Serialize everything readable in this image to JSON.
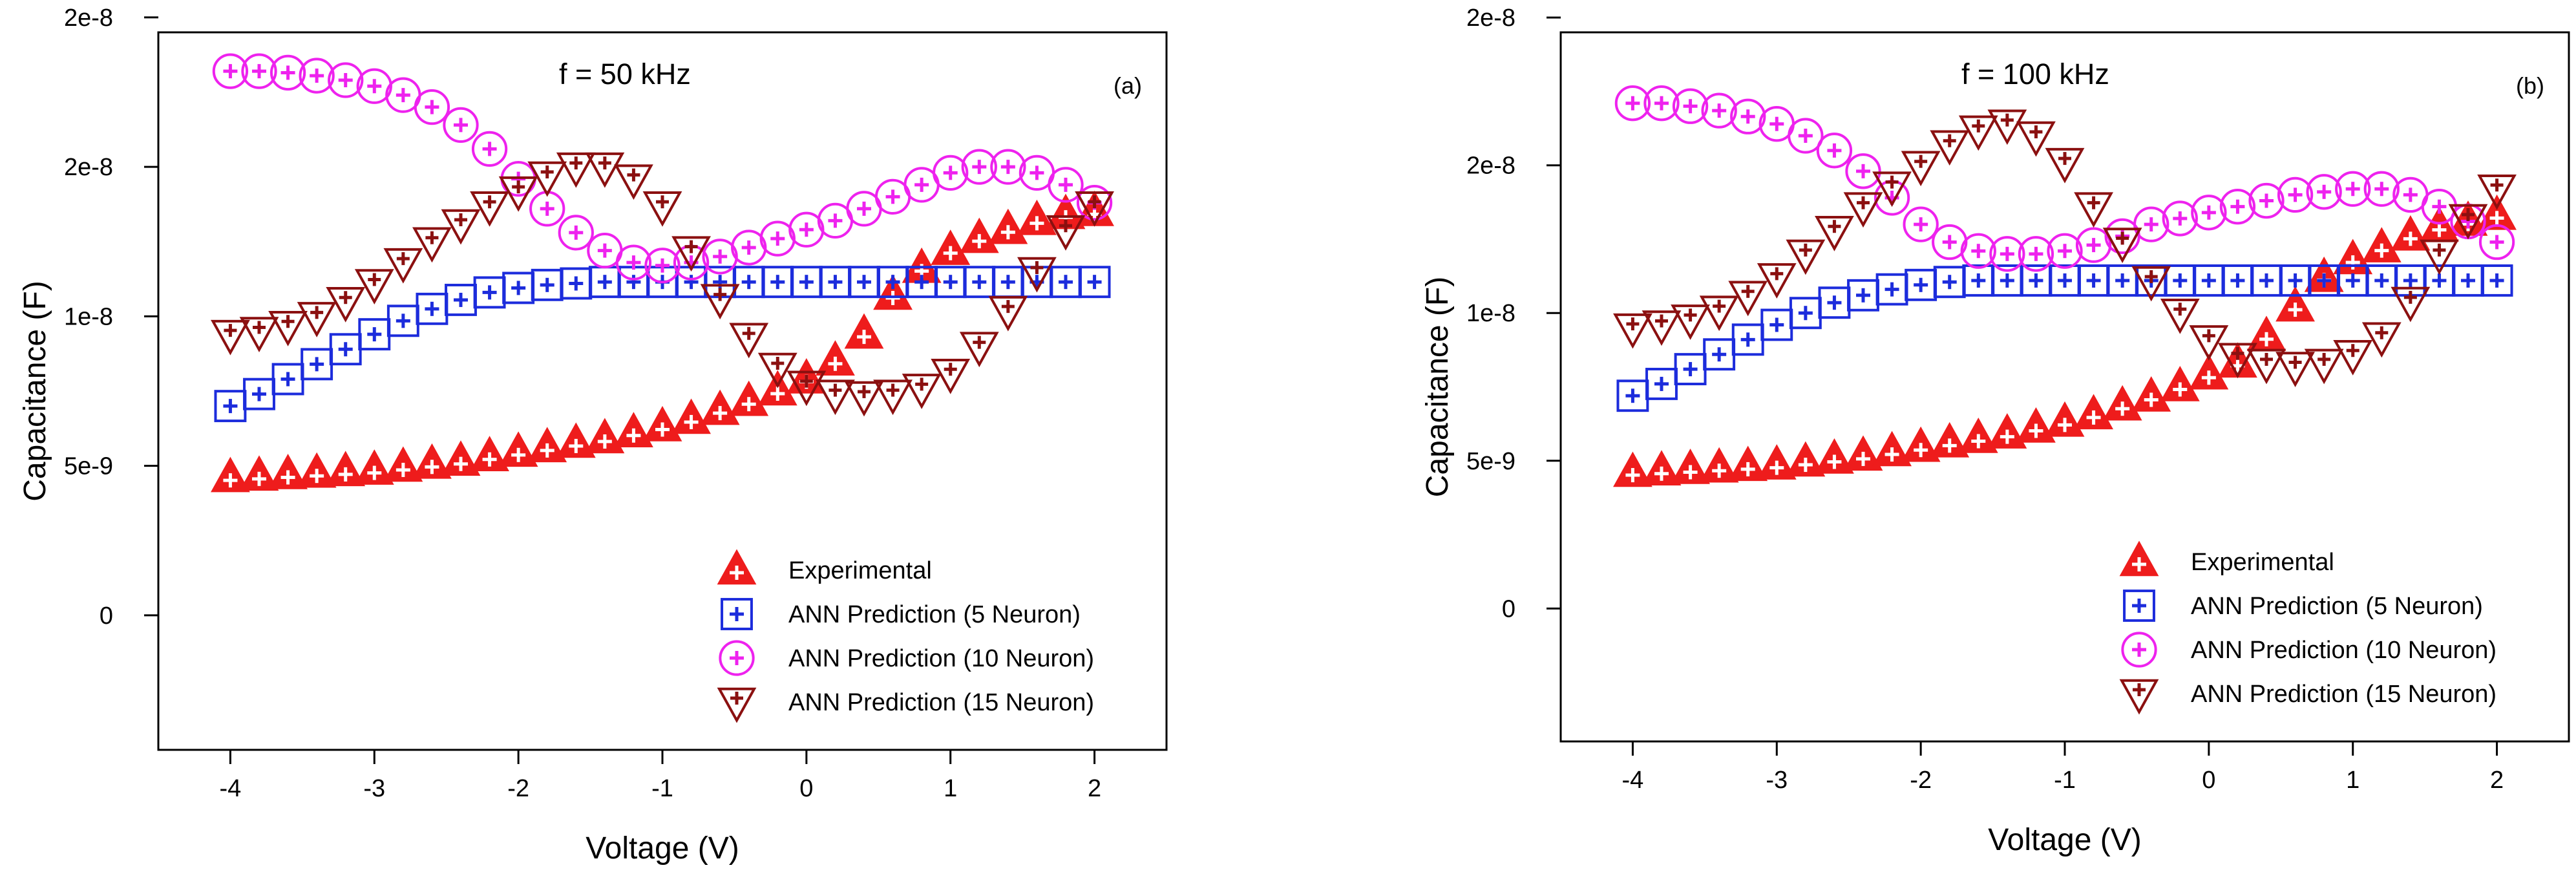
{
  "chart_data": [
    {
      "type": "scatter",
      "panel_label": "(a)",
      "title": "f = 50 kHz",
      "xlabel": "Voltage (V)",
      "ylabel": "Capacitance (F)",
      "xlim": [
        -4.5,
        2.5
      ],
      "ylim": [
        -4.5e-09,
        1.95e-08
      ],
      "xticks": [
        -4,
        -3,
        -2,
        -1,
        0,
        1,
        2
      ],
      "xtick_labels": [
        "-4",
        "-3",
        "-2",
        "-1",
        "0",
        "1",
        "2"
      ],
      "yticks": [
        0,
        5e-09,
        1e-08,
        1.5e-08,
        2e-08
      ],
      "ytick_labels": [
        "0",
        "5e-9",
        "1e-8",
        "2e-8",
        "2e-8"
      ],
      "grid": false,
      "legend_position": "bottom-right",
      "x": [
        -4.0,
        -3.8,
        -3.6,
        -3.4,
        -3.2,
        -3.0,
        -2.8,
        -2.6,
        -2.4,
        -2.2,
        -2.0,
        -1.8,
        -1.6,
        -1.4,
        -1.2,
        -1.0,
        -0.8,
        -0.6,
        -0.4,
        -0.2,
        0.0,
        0.2,
        0.4,
        0.6,
        0.8,
        1.0,
        1.2,
        1.4,
        1.6,
        1.8,
        2.0
      ],
      "series": [
        {
          "name": "Experimental",
          "marker": "triangle-up",
          "color": "#ee1c1c",
          "values": [
            4.6e-09,
            4.65e-09,
            4.7e-09,
            4.75e-09,
            4.8e-09,
            4.85e-09,
            4.95e-09,
            5.05e-09,
            5.15e-09,
            5.3e-09,
            5.45e-09,
            5.6e-09,
            5.75e-09,
            5.9e-09,
            6.1e-09,
            6.3e-09,
            6.55e-09,
            6.85e-09,
            7.15e-09,
            7.5e-09,
            7.9e-09,
            8.5e-09,
            9.4e-09,
            1.07e-08,
            1.16e-08,
            1.22e-08,
            1.26e-08,
            1.29e-08,
            1.32e-08,
            1.34e-08,
            1.35e-08
          ]
        },
        {
          "name": "ANN Prediction (5 Neuron)",
          "marker": "square",
          "color": "#1c2cdc",
          "values": [
            7e-09,
            7.4e-09,
            7.9e-09,
            8.4e-09,
            8.9e-09,
            9.4e-09,
            9.85e-09,
            1.025e-08,
            1.055e-08,
            1.08e-08,
            1.095e-08,
            1.105e-08,
            1.11e-08,
            1.115e-08,
            1.115e-08,
            1.115e-08,
            1.115e-08,
            1.115e-08,
            1.115e-08,
            1.115e-08,
            1.115e-08,
            1.115e-08,
            1.115e-08,
            1.115e-08,
            1.115e-08,
            1.115e-08,
            1.115e-08,
            1.115e-08,
            1.115e-08,
            1.115e-08,
            1.115e-08
          ]
        },
        {
          "name": "ANN Prediction (10 Neuron)",
          "marker": "circle",
          "color": "#ee22ee",
          "values": [
            1.82e-08,
            1.82e-08,
            1.815e-08,
            1.805e-08,
            1.79e-08,
            1.77e-08,
            1.74e-08,
            1.7e-08,
            1.64e-08,
            1.56e-08,
            1.46e-08,
            1.36e-08,
            1.28e-08,
            1.22e-08,
            1.18e-08,
            1.17e-08,
            1.18e-08,
            1.2e-08,
            1.23e-08,
            1.26e-08,
            1.29e-08,
            1.32e-08,
            1.36e-08,
            1.4e-08,
            1.44e-08,
            1.48e-08,
            1.5e-08,
            1.5e-08,
            1.48e-08,
            1.44e-08,
            1.38e-08
          ]
        },
        {
          "name": "ANN Prediction (15 Neuron)",
          "marker": "triangle-down",
          "color": "#8b1010",
          "values": [
            9.4e-09,
            9.5e-09,
            9.7e-09,
            1e-08,
            1.05e-08,
            1.11e-08,
            1.18e-08,
            1.25e-08,
            1.31e-08,
            1.37e-08,
            1.42e-08,
            1.47e-08,
            1.5e-08,
            1.5e-08,
            1.46e-08,
            1.37e-08,
            1.22e-08,
            1.06e-08,
            9.3e-09,
            8.3e-09,
            7.7e-09,
            7.4e-09,
            7.35e-09,
            7.4e-09,
            7.6e-09,
            8.1e-09,
            9e-09,
            1.02e-08,
            1.15e-08,
            1.29e-08,
            1.37e-08
          ]
        }
      ]
    },
    {
      "type": "scatter",
      "panel_label": "(b)",
      "title": "f = 100 kHz",
      "xlabel": "Voltage (V)",
      "ylabel": "Capacitance (F)",
      "xlim": [
        -4.5,
        2.5
      ],
      "ylim": [
        -4.5e-09,
        1.95e-08
      ],
      "xticks": [
        -4,
        -3,
        -2,
        -1,
        0,
        1,
        2
      ],
      "xtick_labels": [
        "-4",
        "-3",
        "-2",
        "-1",
        "0",
        "1",
        "2"
      ],
      "yticks": [
        0,
        5e-09,
        1e-08,
        1.5e-08,
        2e-08
      ],
      "ytick_labels": [
        "0",
        "5e-9",
        "1e-8",
        "2e-8",
        "2e-8"
      ],
      "grid": false,
      "legend_position": "bottom-right",
      "x": [
        -4.0,
        -3.8,
        -3.6,
        -3.4,
        -3.2,
        -3.0,
        -2.8,
        -2.6,
        -2.4,
        -2.2,
        -2.0,
        -1.8,
        -1.6,
        -1.4,
        -1.2,
        -1.0,
        -0.8,
        -0.6,
        -0.4,
        -0.2,
        0.0,
        0.2,
        0.4,
        0.6,
        0.8,
        1.0,
        1.2,
        1.4,
        1.6,
        1.8,
        2.0
      ],
      "series": [
        {
          "name": "Experimental",
          "marker": "triangle-up",
          "color": "#ee1c1c",
          "values": [
            4.6e-09,
            4.65e-09,
            4.7e-09,
            4.75e-09,
            4.8e-09,
            4.85e-09,
            4.95e-09,
            5.05e-09,
            5.15e-09,
            5.3e-09,
            5.45e-09,
            5.6e-09,
            5.75e-09,
            5.9e-09,
            6.1e-09,
            6.3e-09,
            6.55e-09,
            6.85e-09,
            7.15e-09,
            7.5e-09,
            7.9e-09,
            8.3e-09,
            9.2e-09,
            1.02e-08,
            1.12e-08,
            1.18e-08,
            1.22e-08,
            1.26e-08,
            1.29e-08,
            1.31e-08,
            1.33e-08
          ]
        },
        {
          "name": "ANN Prediction (5 Neuron)",
          "marker": "square",
          "color": "#1c2cdc",
          "values": [
            7.2e-09,
            7.6e-09,
            8.1e-09,
            8.6e-09,
            9.1e-09,
            9.6e-09,
            1e-08,
            1.035e-08,
            1.06e-08,
            1.08e-08,
            1.095e-08,
            1.105e-08,
            1.11e-08,
            1.11e-08,
            1.11e-08,
            1.11e-08,
            1.11e-08,
            1.11e-08,
            1.11e-08,
            1.11e-08,
            1.11e-08,
            1.11e-08,
            1.11e-08,
            1.11e-08,
            1.11e-08,
            1.11e-08,
            1.11e-08,
            1.11e-08,
            1.11e-08,
            1.11e-08,
            1.11e-08
          ]
        },
        {
          "name": "ANN Prediction (10 Neuron)",
          "marker": "circle",
          "color": "#ee22ee",
          "values": [
            1.71e-08,
            1.71e-08,
            1.7e-08,
            1.685e-08,
            1.665e-08,
            1.64e-08,
            1.6e-08,
            1.55e-08,
            1.48e-08,
            1.39e-08,
            1.3e-08,
            1.24e-08,
            1.21e-08,
            1.2e-08,
            1.2e-08,
            1.21e-08,
            1.23e-08,
            1.26e-08,
            1.3e-08,
            1.32e-08,
            1.34e-08,
            1.36e-08,
            1.38e-08,
            1.4e-08,
            1.41e-08,
            1.42e-08,
            1.42e-08,
            1.4e-08,
            1.36e-08,
            1.31e-08,
            1.24e-08
          ]
        },
        {
          "name": "ANN Prediction (15 Neuron)",
          "marker": "triangle-down",
          "color": "#8b1010",
          "values": [
            9.5e-09,
            9.6e-09,
            9.8e-09,
            1.01e-08,
            1.06e-08,
            1.12e-08,
            1.2e-08,
            1.28e-08,
            1.36e-08,
            1.43e-08,
            1.5e-08,
            1.57e-08,
            1.62e-08,
            1.64e-08,
            1.6e-08,
            1.51e-08,
            1.36e-08,
            1.24e-08,
            1.11e-08,
            1e-08,
            9.1e-09,
            8.5e-09,
            8.3e-09,
            8.2e-09,
            8.3e-09,
            8.6e-09,
            9.2e-09,
            1.04e-08,
            1.2e-08,
            1.32e-08,
            1.42e-08
          ]
        }
      ]
    }
  ]
}
